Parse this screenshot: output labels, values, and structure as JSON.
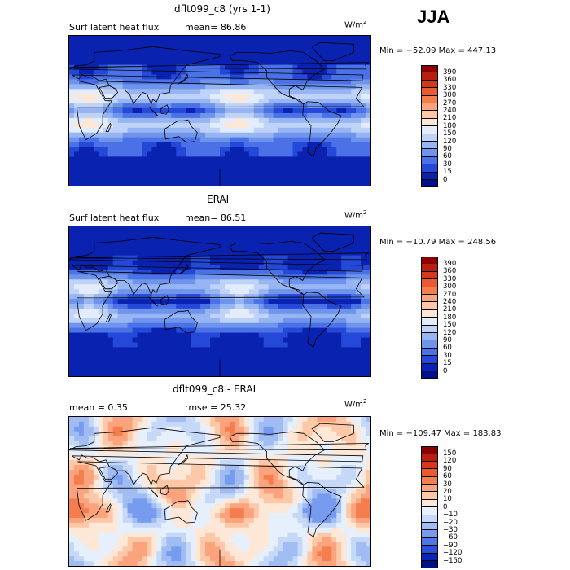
{
  "season": "JJA",
  "panels": [
    {
      "title": "dflt099_c8 (yrs 1-1)",
      "subtitle_left": "Surf latent heat flux",
      "subtitle_stat": "mean=  86.86",
      "unit_base": "W/m",
      "unit_exp": "2",
      "minmax": "Min = −52.09 Max = 447.13",
      "palette": "abs",
      "colorbar_labels": [
        "390",
        "360",
        "330",
        "300",
        "270",
        "240",
        "210",
        "180",
        "150",
        "120",
        "90",
        "60",
        "30",
        "15",
        "0"
      ]
    },
    {
      "title": "ERAI",
      "subtitle_left": "Surf latent heat flux",
      "subtitle_stat": "mean=  86.51",
      "unit_base": "W/m",
      "unit_exp": "2",
      "minmax": "Min = −10.79 Max = 248.56",
      "palette": "abs",
      "colorbar_labels": [
        "390",
        "360",
        "330",
        "300",
        "270",
        "240",
        "210",
        "180",
        "150",
        "120",
        "90",
        "60",
        "30",
        "15",
        "0"
      ]
    },
    {
      "title": "dflt099_c8 - ERAI",
      "subtitle_left": "mean =    0.35",
      "subtitle_stat": "rmse =   25.32",
      "unit_base": "W/m",
      "unit_exp": "2",
      "minmax": "Min = −109.47 Max = 183.83",
      "palette": "diff",
      "colorbar_labels": [
        "150",
        "120",
        "90",
        "60",
        "30",
        "20",
        "10",
        "0",
        "−10",
        "−20",
        "−30",
        "−60",
        "−90",
        "−120",
        "−150"
      ]
    }
  ],
  "colors": {
    "abs": [
      "#8b0000",
      "#b81f10",
      "#d6381c",
      "#ea5a2e",
      "#f57e4f",
      "#fba37c",
      "#fdc8a8",
      "#fde8d8",
      "#e2ecfa",
      "#bfd2f7",
      "#97b5f2",
      "#6f94ec",
      "#4a72e6",
      "#2449d8",
      "#0a22b0",
      "#00108a"
    ],
    "diff": [
      "#8b0000",
      "#b81f10",
      "#d6381c",
      "#ea5a2e",
      "#f57e4f",
      "#fba37c",
      "#fdc8a8",
      "#fde8d8",
      "#e6effc",
      "#c6d8f8",
      "#a0bcf3",
      "#779bee",
      "#4f76e6",
      "#2a4fd8",
      "#0c25b3",
      "#00108a"
    ]
  },
  "chart_data": [
    {
      "type": "heatmap",
      "title": "dflt099_c8 (yrs 1-1)",
      "variable": "Surf latent heat flux",
      "mean": 86.86,
      "min": -52.09,
      "max": 447.13,
      "unit": "W/m2",
      "colorbar_levels": [
        0,
        15,
        30,
        60,
        90,
        120,
        150,
        180,
        210,
        240,
        270,
        300,
        330,
        360,
        390
      ]
    },
    {
      "type": "heatmap",
      "title": "ERAI",
      "variable": "Surf latent heat flux",
      "mean": 86.51,
      "min": -10.79,
      "max": 248.56,
      "unit": "W/m2",
      "colorbar_levels": [
        0,
        15,
        30,
        60,
        90,
        120,
        150,
        180,
        210,
        240,
        270,
        300,
        330,
        360,
        390
      ]
    },
    {
      "type": "heatmap",
      "title": "dflt099_c8 - ERAI",
      "mean": 0.35,
      "rmse": 25.32,
      "min": -109.47,
      "max": 183.83,
      "unit": "W/m2",
      "colorbar_levels": [
        -150,
        -120,
        -90,
        -60,
        -30,
        -20,
        -10,
        0,
        10,
        20,
        30,
        60,
        90,
        120,
        150
      ]
    }
  ]
}
